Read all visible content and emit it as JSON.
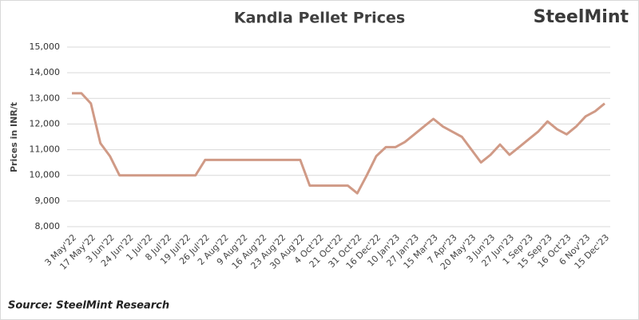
{
  "chart_data": {
    "type": "line",
    "title": "Kandla Pellet Prices",
    "logo": "SteelMint",
    "source": "Source: SteelMint Research",
    "y_label": "Prices in INR/t",
    "categories": [
      "3 May'22",
      null,
      "17 May'22",
      null,
      "3 Jun'22",
      null,
      "24 Jun'22",
      null,
      "1 Jul'22",
      null,
      "8 Jul'22",
      null,
      "19 Jul'22",
      null,
      "26 Jul'22",
      null,
      "2 Aug'22",
      null,
      "9 Aug'22",
      null,
      "16 Aug'22",
      null,
      "23 Aug'22",
      null,
      "30 Aug'22",
      null,
      "4 Oct'22",
      null,
      "21 Oct'22",
      null,
      "31 Oct'22",
      null,
      "16 Dec'22",
      null,
      "10 Jan'23",
      null,
      "27 Jan'23",
      null,
      "15 Mar'23",
      null,
      "7 Apr'23",
      null,
      "20 May'23",
      null,
      "3 Jun'23",
      null,
      "27 Jun'23",
      null,
      "1 Sep'23",
      null,
      "15 Sep'23",
      null,
      "16 Oct'23",
      null,
      "6 Nov'23",
      null,
      "15 Dec'23"
    ],
    "values": [
      13200,
      13200,
      12800,
      11250,
      10750,
      10000,
      10000,
      10000,
      10000,
      10000,
      10000,
      10000,
      10000,
      10000,
      10600,
      10600,
      10600,
      10600,
      10600,
      10600,
      10600,
      10600,
      10600,
      10600,
      10600,
      9600,
      9600,
      9600,
      9600,
      9600,
      9300,
      10000,
      10750,
      11100,
      11100,
      11300,
      11600,
      11900,
      12200,
      11900,
      11700,
      11500,
      11000,
      10500,
      10800,
      11200,
      10800,
      11100,
      11400,
      11700,
      12100,
      11800,
      11600,
      11900,
      12300,
      12500,
      12800
    ],
    "color": "#d09a86",
    "ylim": [
      8000,
      15000
    ],
    "yticks": [
      {
        "value": 8000,
        "label": "8,000"
      },
      {
        "value": 9000,
        "label": "9,000"
      },
      {
        "value": 10000,
        "label": "10,000"
      },
      {
        "value": 11000,
        "label": "11,000"
      },
      {
        "value": 12000,
        "label": "12,000"
      },
      {
        "value": 13000,
        "label": "13,000"
      },
      {
        "value": 14000,
        "label": "14,000"
      },
      {
        "value": 15000,
        "label": "15,000"
      }
    ],
    "grid": true
  }
}
